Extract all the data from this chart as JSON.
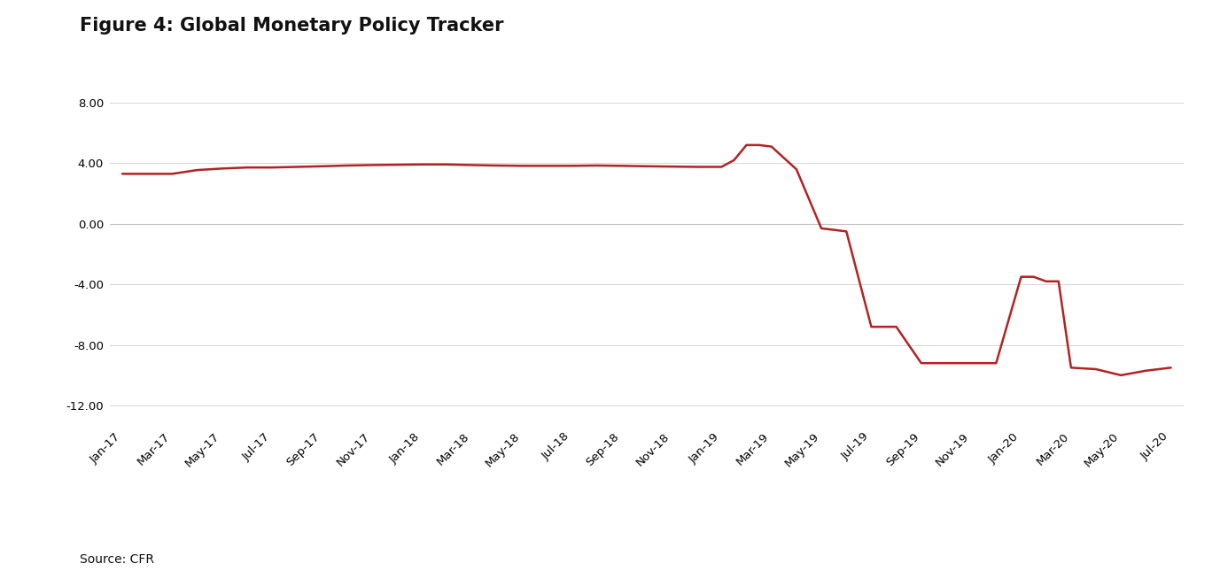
{
  "title": "Figure 4: Global Monetary Policy Tracker",
  "source": "Source: CFR",
  "line_color": "#B22222",
  "background_color": "#ffffff",
  "xlabels": [
    "Jan-17",
    "Mar-17",
    "May-17",
    "Jul-17",
    "Sep-17",
    "Nov-17",
    "Jan-18",
    "Mar-18",
    "May-18",
    "Jul-18",
    "Sep-18",
    "Nov-18",
    "Jan-19",
    "Mar-19",
    "May-19",
    "Jul-19",
    "Sep-19",
    "Nov-19",
    "Jan-20",
    "Mar-20",
    "May-20",
    "Jul-20"
  ],
  "key_points_x": [
    0,
    1,
    2,
    3,
    4,
    5,
    6,
    7,
    8,
    9,
    10,
    11,
    12,
    13,
    14,
    15,
    16,
    17,
    18,
    19,
    20,
    21,
    22,
    23,
    24,
    24.5,
    25,
    25.5,
    26,
    27,
    28,
    29,
    30,
    31,
    32,
    33,
    34,
    35,
    36,
    36.5,
    37,
    37.5,
    38,
    39,
    40,
    41,
    42
  ],
  "key_points_y": [
    3.3,
    3.3,
    3.3,
    3.55,
    3.65,
    3.72,
    3.72,
    3.76,
    3.8,
    3.85,
    3.88,
    3.9,
    3.92,
    3.92,
    3.88,
    3.85,
    3.83,
    3.83,
    3.83,
    3.85,
    3.83,
    3.8,
    3.78,
    3.76,
    3.76,
    4.2,
    5.2,
    5.2,
    5.1,
    3.6,
    -0.3,
    -0.5,
    -6.8,
    -6.8,
    -9.2,
    -9.2,
    -9.2,
    -9.2,
    -3.5,
    -3.5,
    -3.8,
    -3.8,
    -9.5,
    -9.6,
    -10.0,
    -9.7,
    -9.5
  ],
  "ylim": [
    -13.5,
    9.5
  ],
  "yticks": [
    8.0,
    4.0,
    0.0,
    -4.0,
    -8.0,
    -12.0
  ],
  "grid_color": "#d0d0d0",
  "zero_line_color": "#c0c0c0"
}
